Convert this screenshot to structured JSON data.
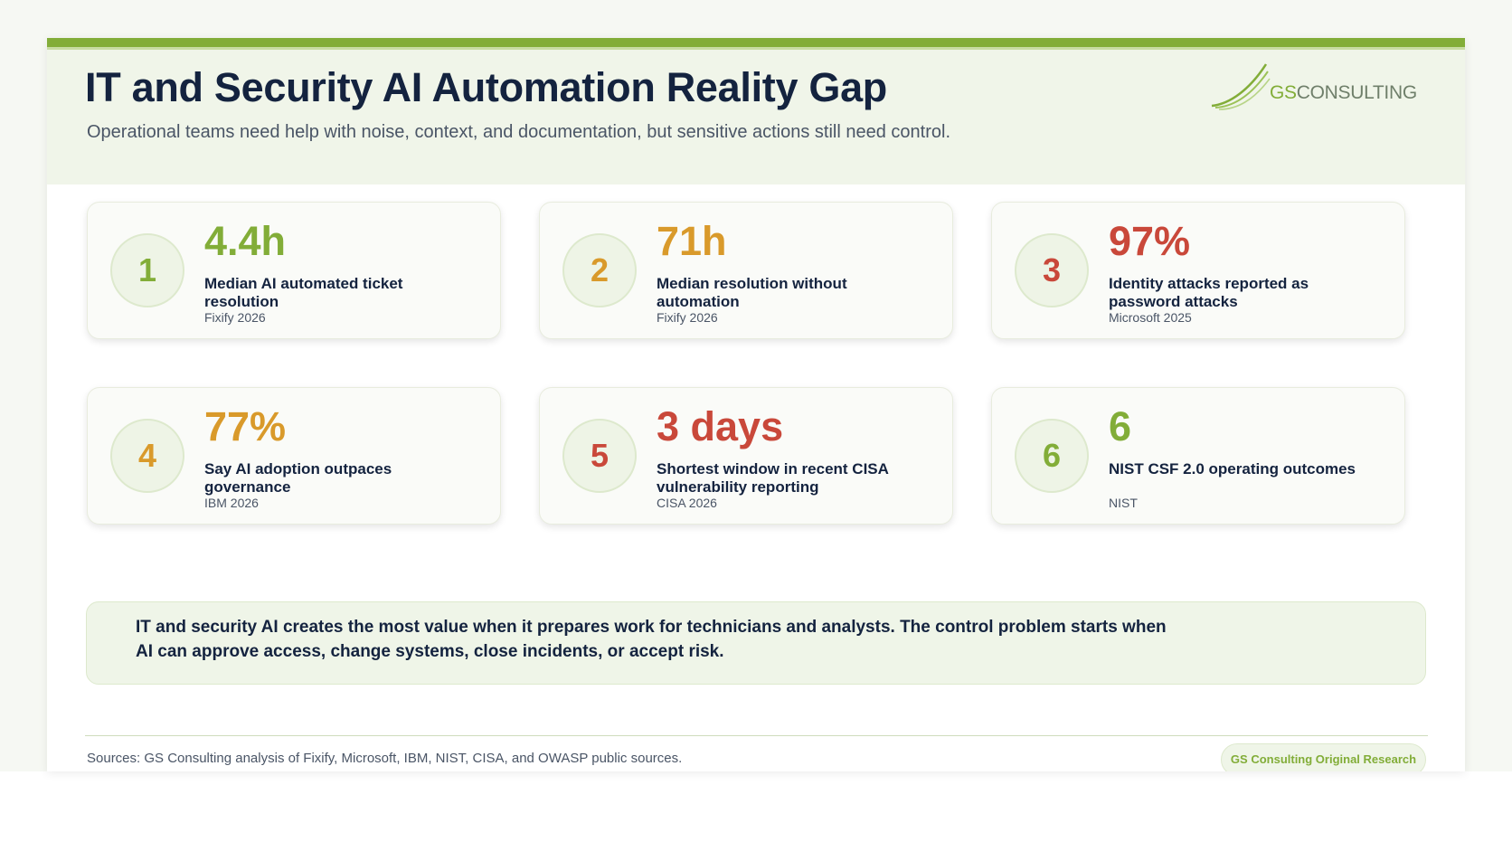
{
  "header": {
    "title": "IT and Security AI Automation Reality Gap",
    "subtitle": "Operational teams need help with noise, context, and documentation, but sensitive actions still need control.",
    "logo_part1": "GS",
    "logo_part2": "CONSULTING"
  },
  "colors": {
    "brand_green": "#82ad38",
    "amber": "#d99a2b",
    "red": "#c9483a",
    "navy": "#14233f"
  },
  "stats": [
    {
      "number": "1",
      "value": "4.4h",
      "label": "Median AI automated ticket resolution",
      "source": "Fixify 2026",
      "color": "#82ad38"
    },
    {
      "number": "2",
      "value": "71h",
      "label": "Median resolution without automation",
      "source": "Fixify 2026",
      "color": "#d99a2b"
    },
    {
      "number": "3",
      "value": "97%",
      "label": "Identity attacks reported as password attacks",
      "source": "Microsoft 2025",
      "color": "#c9483a"
    },
    {
      "number": "4",
      "value": "77%",
      "label": "Say AI adoption outpaces governance",
      "source": "IBM 2026",
      "color": "#d99a2b"
    },
    {
      "number": "5",
      "value": "3 days",
      "label": "Shortest window in recent CISA vulnerability reporting",
      "source": "CISA 2026",
      "color": "#c9483a"
    },
    {
      "number": "6",
      "value": "6",
      "label": "NIST CSF 2.0 operating outcomes",
      "source": "NIST",
      "color": "#82ad38"
    }
  ],
  "callout": "IT and security AI creates the most value when it prepares work for technicians and analysts. The control problem starts when AI can approve access, change systems, close incidents, or accept risk.",
  "footer": {
    "sources": "Sources: GS Consulting analysis of Fixify, Microsoft, IBM, NIST, CISA, and OWASP public sources.",
    "badge": "GS Consulting Original Research"
  }
}
